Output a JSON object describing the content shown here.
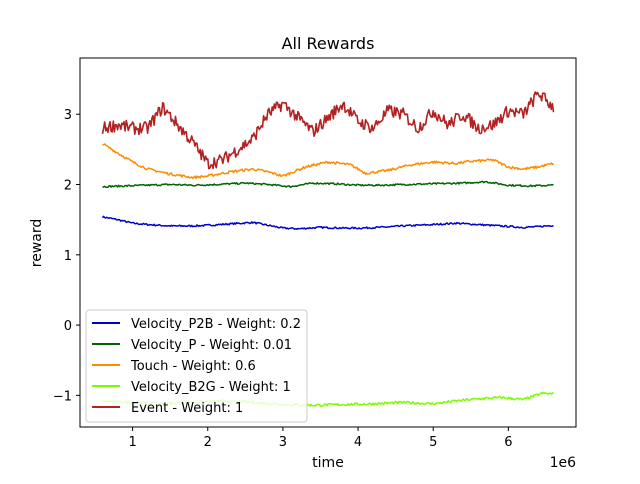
{
  "chart_data": {
    "type": "line",
    "title": "All Rewards",
    "xlabel": "time",
    "ylabel": "reward",
    "x_offset_label": "1e6",
    "xlim": [
      0.3,
      6.9
    ],
    "ylim": [
      -1.45,
      3.8
    ],
    "x_ticks": [
      1,
      2,
      3,
      4,
      5,
      6
    ],
    "x_tick_labels": [
      "1",
      "2",
      "3",
      "4",
      "5",
      "6"
    ],
    "y_ticks": [
      -1,
      0,
      1,
      2,
      3
    ],
    "y_tick_labels": [
      "−1",
      "0",
      "1",
      "2",
      "3"
    ],
    "grid": false,
    "legend_position": "lower-left",
    "series": [
      {
        "name": "Velocity_P2B - Weight: 0.2",
        "color": "#0000cd",
        "x": [
          0.6,
          0.8,
          1.0,
          1.2,
          1.5,
          1.8,
          2.0,
          2.3,
          2.6,
          2.8,
          3.0,
          3.2,
          3.5,
          3.8,
          4.0,
          4.3,
          4.6,
          5.0,
          5.3,
          5.6,
          5.9,
          6.2,
          6.4,
          6.6
        ],
        "y": [
          1.54,
          1.5,
          1.45,
          1.43,
          1.41,
          1.41,
          1.42,
          1.44,
          1.46,
          1.42,
          1.38,
          1.37,
          1.39,
          1.38,
          1.38,
          1.39,
          1.41,
          1.43,
          1.45,
          1.43,
          1.41,
          1.39,
          1.4,
          1.42
        ]
      },
      {
        "name": "Velocity_P - Weight: 0.01",
        "color": "#006400",
        "x": [
          0.6,
          0.9,
          1.2,
          1.5,
          1.8,
          2.1,
          2.5,
          2.8,
          3.1,
          3.4,
          3.7,
          4.0,
          4.3,
          4.6,
          5.0,
          5.4,
          5.7,
          6.0,
          6.3,
          6.6
        ],
        "y": [
          1.97,
          1.98,
          1.99,
          2.0,
          1.99,
          2.0,
          2.02,
          2.0,
          1.97,
          2.02,
          2.01,
          1.99,
          1.99,
          2.0,
          2.01,
          2.02,
          2.04,
          1.99,
          1.98,
          1.99
        ]
      },
      {
        "name": "Touch - Weight: 0.6",
        "color": "#ff8c00",
        "x": [
          0.6,
          0.8,
          1.0,
          1.2,
          1.5,
          1.8,
          2.0,
          2.3,
          2.6,
          2.8,
          3.0,
          3.3,
          3.6,
          3.9,
          4.1,
          4.4,
          4.7,
          5.0,
          5.3,
          5.5,
          5.8,
          6.0,
          6.2,
          6.4,
          6.6
        ],
        "y": [
          2.58,
          2.45,
          2.32,
          2.22,
          2.15,
          2.1,
          2.12,
          2.18,
          2.22,
          2.18,
          2.12,
          2.25,
          2.32,
          2.28,
          2.16,
          2.2,
          2.28,
          2.32,
          2.3,
          2.33,
          2.35,
          2.25,
          2.22,
          2.25,
          2.3
        ]
      },
      {
        "name": "Velocity_B2G - Weight: 1",
        "color": "#7cfc00",
        "x": [
          0.6,
          1.0,
          1.4,
          1.8,
          2.2,
          2.6,
          3.0,
          3.4,
          3.8,
          4.2,
          4.6,
          5.0,
          5.3,
          5.6,
          5.9,
          6.2,
          6.45,
          6.6
        ],
        "y": [
          -1.08,
          -1.1,
          -1.12,
          -1.1,
          -1.08,
          -1.1,
          -1.13,
          -1.14,
          -1.13,
          -1.12,
          -1.1,
          -1.12,
          -1.08,
          -1.05,
          -1.03,
          -1.06,
          -0.97,
          -0.98
        ]
      },
      {
        "name": "Event - Weight: 1",
        "color": "#b22222",
        "x": [
          0.6,
          0.8,
          1.0,
          1.2,
          1.4,
          1.6,
          1.8,
          2.0,
          2.2,
          2.4,
          2.6,
          2.8,
          3.0,
          3.2,
          3.4,
          3.6,
          3.8,
          4.0,
          4.2,
          4.4,
          4.6,
          4.8,
          5.0,
          5.2,
          5.4,
          5.6,
          5.8,
          6.0,
          6.2,
          6.4,
          6.6
        ],
        "y": [
          2.8,
          2.85,
          2.8,
          2.8,
          3.1,
          2.85,
          2.6,
          2.3,
          2.35,
          2.5,
          2.65,
          3.0,
          3.15,
          2.95,
          2.75,
          2.95,
          3.15,
          2.9,
          2.8,
          3.05,
          3.0,
          2.8,
          3.05,
          2.85,
          3.0,
          2.8,
          2.85,
          3.05,
          3.0,
          3.3,
          3.1
        ]
      }
    ]
  }
}
